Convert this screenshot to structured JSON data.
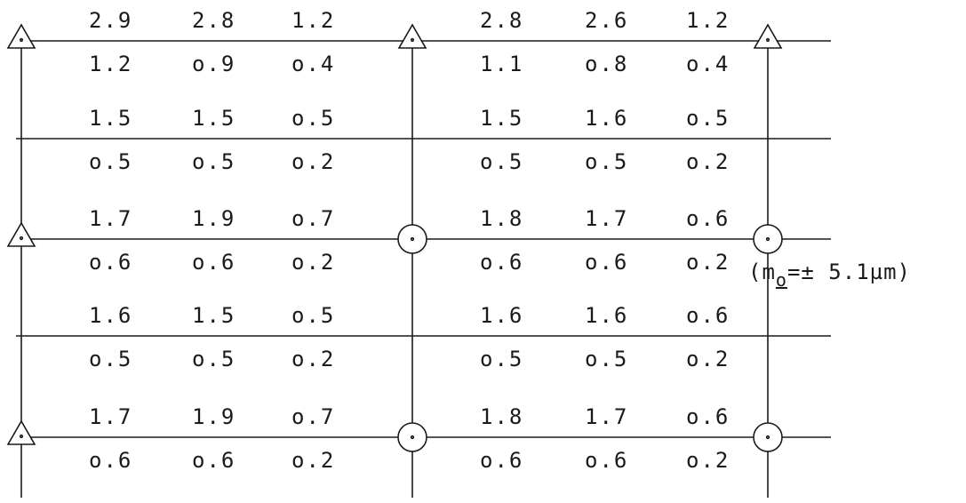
{
  "colors": {
    "ink": "#1a1a1a",
    "background": "#ffffff"
  },
  "symbols": {
    "triangle": "triangle-marker-icon",
    "circle": "circle-marker-icon"
  },
  "annotation": "(mₒ=± 5.1µm)",
  "annotation_parts": {
    "open": "(m",
    "subscript": "o",
    "equals": "=",
    "pm": "±",
    "value": " 5.1",
    "unit": "µm)"
  },
  "blocks": [
    {
      "left": [
        [
          "2.9",
          "2.8",
          "1.2"
        ],
        [
          "1.2",
          "o.9",
          "o.4"
        ]
      ],
      "right": [
        [
          "2.8",
          "2.6",
          "1.2"
        ],
        [
          "1.1",
          "o.8",
          "o.4"
        ]
      ],
      "markers": [
        "triangle",
        "triangle",
        "triangle"
      ]
    },
    {
      "left": [
        [
          "1.5",
          "1.5",
          "o.5"
        ],
        [
          "o.5",
          "o.5",
          "o.2"
        ]
      ],
      "right": [
        [
          "1.5",
          "1.6",
          "o.5"
        ],
        [
          "o.5",
          "o.5",
          "o.2"
        ]
      ],
      "markers": [
        "none",
        "none",
        "none"
      ]
    },
    {
      "left": [
        [
          "1.7",
          "1.9",
          "o.7"
        ],
        [
          "o.6",
          "o.6",
          "o.2"
        ]
      ],
      "right": [
        [
          "1.8",
          "1.7",
          "o.6"
        ],
        [
          "o.6",
          "o.6",
          "o.2"
        ]
      ],
      "markers": [
        "triangle",
        "circle",
        "circle"
      ]
    },
    {
      "left": [
        [
          "1.6",
          "1.5",
          "o.5"
        ],
        [
          "o.5",
          "o.5",
          "o.2"
        ]
      ],
      "right": [
        [
          "1.6",
          "1.6",
          "o.6"
        ],
        [
          "o.5",
          "o.5",
          "o.2"
        ]
      ],
      "markers": [
        "none",
        "none",
        "none"
      ]
    },
    {
      "left": [
        [
          "1.7",
          "1.9",
          "o.7"
        ],
        [
          "o.6",
          "o.6",
          "o.2"
        ]
      ],
      "right": [
        [
          "1.8",
          "1.7",
          "o.6"
        ],
        [
          "o.6",
          "o.6",
          "o.2"
        ]
      ],
      "markers": [
        "triangle",
        "circle",
        "circle"
      ]
    }
  ]
}
